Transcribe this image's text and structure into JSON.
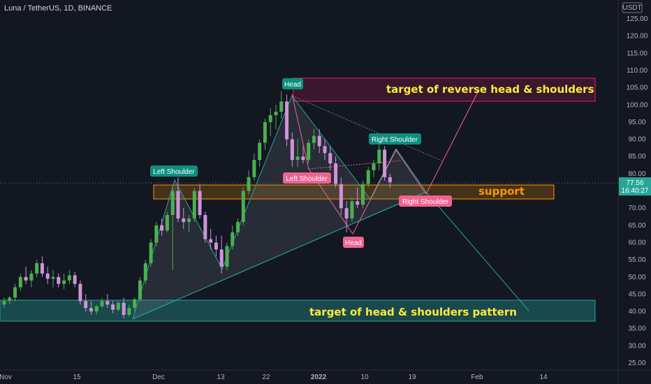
{
  "header": {
    "symbol_line": "Luna / TetherUS, 1D, BINANCE"
  },
  "price_axis": {
    "currency": "USDT",
    "current_price": "77.56",
    "countdown": "16:40:27"
  },
  "colors": {
    "bull": "#4caf50",
    "bear": "#ce93d8",
    "teal_zone": "#26a69a",
    "pink_zone": "#e91e63",
    "support_zone": "#ff9800",
    "zone_text": "#ffeb3b",
    "support_text": "#ff9800",
    "label_teal": "#0d8f7d",
    "label_pink": "#f06292"
  },
  "annotations": {
    "target_reverse": "target of reverse head & shoulders",
    "support": "support",
    "target_hs": "target of head & shoulders pattern",
    "hs_left_shoulder": "Left Shoulder",
    "hs_head": "Head",
    "hs_right_shoulder": "Right Shoulder",
    "ihs_left_shoulder": "Left Shoulder",
    "ihs_head": "Head",
    "ihs_right_shoulder": "Right Shoulder"
  },
  "chart_data": {
    "type": "candlestick",
    "title": "Luna / TetherUS, 1D, BINANCE",
    "ylim": [
      25,
      135
    ],
    "y_ticks": [
      25,
      30,
      35,
      40,
      45,
      50,
      55,
      60,
      65,
      70,
      75,
      80,
      85,
      90,
      95,
      100,
      105,
      110,
      115,
      120,
      125
    ],
    "x_ticks": [
      "Nov",
      "15",
      "Dec",
      "13",
      "22",
      "2022",
      "10",
      "19",
      "Feb",
      "14"
    ],
    "last_price": 77.56,
    "ohlc": [
      {
        "o": 42,
        "h": 44,
        "l": 41,
        "c": 43
      },
      {
        "o": 43,
        "h": 44.5,
        "l": 42,
        "c": 44
      },
      {
        "o": 44,
        "h": 48,
        "l": 43,
        "c": 47
      },
      {
        "o": 47,
        "h": 51,
        "l": 46,
        "c": 50
      },
      {
        "o": 50,
        "h": 53,
        "l": 48,
        "c": 49
      },
      {
        "o": 49,
        "h": 52,
        "l": 47,
        "c": 51
      },
      {
        "o": 51,
        "h": 55,
        "l": 50,
        "c": 54
      },
      {
        "o": 54,
        "h": 56,
        "l": 50,
        "c": 51
      },
      {
        "o": 51,
        "h": 53,
        "l": 48,
        "c": 49.5
      },
      {
        "o": 49.5,
        "h": 52,
        "l": 47,
        "c": 50
      },
      {
        "o": 50,
        "h": 51,
        "l": 47,
        "c": 48
      },
      {
        "o": 48,
        "h": 51,
        "l": 46.5,
        "c": 49
      },
      {
        "o": 49,
        "h": 52,
        "l": 48,
        "c": 50.5
      },
      {
        "o": 50.5,
        "h": 51.5,
        "l": 47,
        "c": 48
      },
      {
        "o": 48,
        "h": 49,
        "l": 42,
        "c": 43
      },
      {
        "o": 43,
        "h": 45,
        "l": 40,
        "c": 41
      },
      {
        "o": 41,
        "h": 43,
        "l": 39,
        "c": 40
      },
      {
        "o": 40,
        "h": 42,
        "l": 39,
        "c": 41.5
      },
      {
        "o": 41.5,
        "h": 44,
        "l": 41,
        "c": 43
      },
      {
        "o": 43,
        "h": 45,
        "l": 41,
        "c": 42
      },
      {
        "o": 42,
        "h": 43,
        "l": 39.5,
        "c": 40.5
      },
      {
        "o": 40.5,
        "h": 43,
        "l": 40,
        "c": 42.5
      },
      {
        "o": 42.5,
        "h": 44,
        "l": 38,
        "c": 39
      },
      {
        "o": 39,
        "h": 42,
        "l": 38.5,
        "c": 41
      },
      {
        "o": 41,
        "h": 44,
        "l": 40,
        "c": 43.5
      },
      {
        "o": 43.5,
        "h": 50,
        "l": 43,
        "c": 49
      },
      {
        "o": 49,
        "h": 55,
        "l": 48,
        "c": 54
      },
      {
        "o": 54,
        "h": 61,
        "l": 53,
        "c": 60
      },
      {
        "o": 60,
        "h": 66,
        "l": 59,
        "c": 65
      },
      {
        "o": 65,
        "h": 67,
        "l": 62,
        "c": 63.5
      },
      {
        "o": 63.5,
        "h": 69,
        "l": 63,
        "c": 68
      },
      {
        "o": 68,
        "h": 76,
        "l": 52,
        "c": 75
      },
      {
        "o": 75,
        "h": 79,
        "l": 66,
        "c": 67
      },
      {
        "o": 67,
        "h": 70,
        "l": 64,
        "c": 66
      },
      {
        "o": 66,
        "h": 68,
        "l": 63,
        "c": 67
      },
      {
        "o": 67,
        "h": 76,
        "l": 66,
        "c": 75
      },
      {
        "o": 75,
        "h": 77,
        "l": 67,
        "c": 68
      },
      {
        "o": 68,
        "h": 69,
        "l": 60,
        "c": 61
      },
      {
        "o": 61,
        "h": 64,
        "l": 58,
        "c": 60
      },
      {
        "o": 60,
        "h": 62,
        "l": 56,
        "c": 58
      },
      {
        "o": 58,
        "h": 62,
        "l": 51,
        "c": 53
      },
      {
        "o": 53,
        "h": 60,
        "l": 52,
        "c": 59
      },
      {
        "o": 59,
        "h": 65,
        "l": 58,
        "c": 63
      },
      {
        "o": 63,
        "h": 67,
        "l": 62,
        "c": 66
      },
      {
        "o": 66,
        "h": 76,
        "l": 65,
        "c": 75
      },
      {
        "o": 75,
        "h": 81,
        "l": 74,
        "c": 79
      },
      {
        "o": 79,
        "h": 86,
        "l": 78,
        "c": 84
      },
      {
        "o": 84,
        "h": 90,
        "l": 82,
        "c": 89
      },
      {
        "o": 89,
        "h": 96,
        "l": 87,
        "c": 95
      },
      {
        "o": 95,
        "h": 99,
        "l": 91,
        "c": 97
      },
      {
        "o": 97,
        "h": 100,
        "l": 93,
        "c": 98
      },
      {
        "o": 98,
        "h": 104,
        "l": 96,
        "c": 101
      },
      {
        "o": 101,
        "h": 103,
        "l": 88,
        "c": 90
      },
      {
        "o": 90,
        "h": 92,
        "l": 82,
        "c": 84
      },
      {
        "o": 84,
        "h": 90,
        "l": 82,
        "c": 85
      },
      {
        "o": 85,
        "h": 88,
        "l": 83,
        "c": 84
      },
      {
        "o": 84,
        "h": 90,
        "l": 83,
        "c": 89
      },
      {
        "o": 89,
        "h": 93,
        "l": 87,
        "c": 91
      },
      {
        "o": 91,
        "h": 93,
        "l": 86,
        "c": 88
      },
      {
        "o": 88,
        "h": 90,
        "l": 84,
        "c": 86
      },
      {
        "o": 86,
        "h": 88,
        "l": 81,
        "c": 83
      },
      {
        "o": 83,
        "h": 85,
        "l": 76,
        "c": 77
      },
      {
        "o": 77,
        "h": 79,
        "l": 68,
        "c": 70
      },
      {
        "o": 70,
        "h": 72,
        "l": 63,
        "c": 67
      },
      {
        "o": 67,
        "h": 73,
        "l": 66,
        "c": 72
      },
      {
        "o": 72,
        "h": 76,
        "l": 70,
        "c": 71
      },
      {
        "o": 71,
        "h": 78,
        "l": 70,
        "c": 77
      },
      {
        "o": 77,
        "h": 82,
        "l": 76,
        "c": 81
      },
      {
        "o": 81,
        "h": 84,
        "l": 79,
        "c": 83
      },
      {
        "o": 83,
        "h": 89,
        "l": 81,
        "c": 87
      },
      {
        "o": 87,
        "h": 88,
        "l": 78,
        "c": 79
      },
      {
        "o": 79,
        "h": 80,
        "l": 76,
        "c": 77.56
      }
    ]
  }
}
